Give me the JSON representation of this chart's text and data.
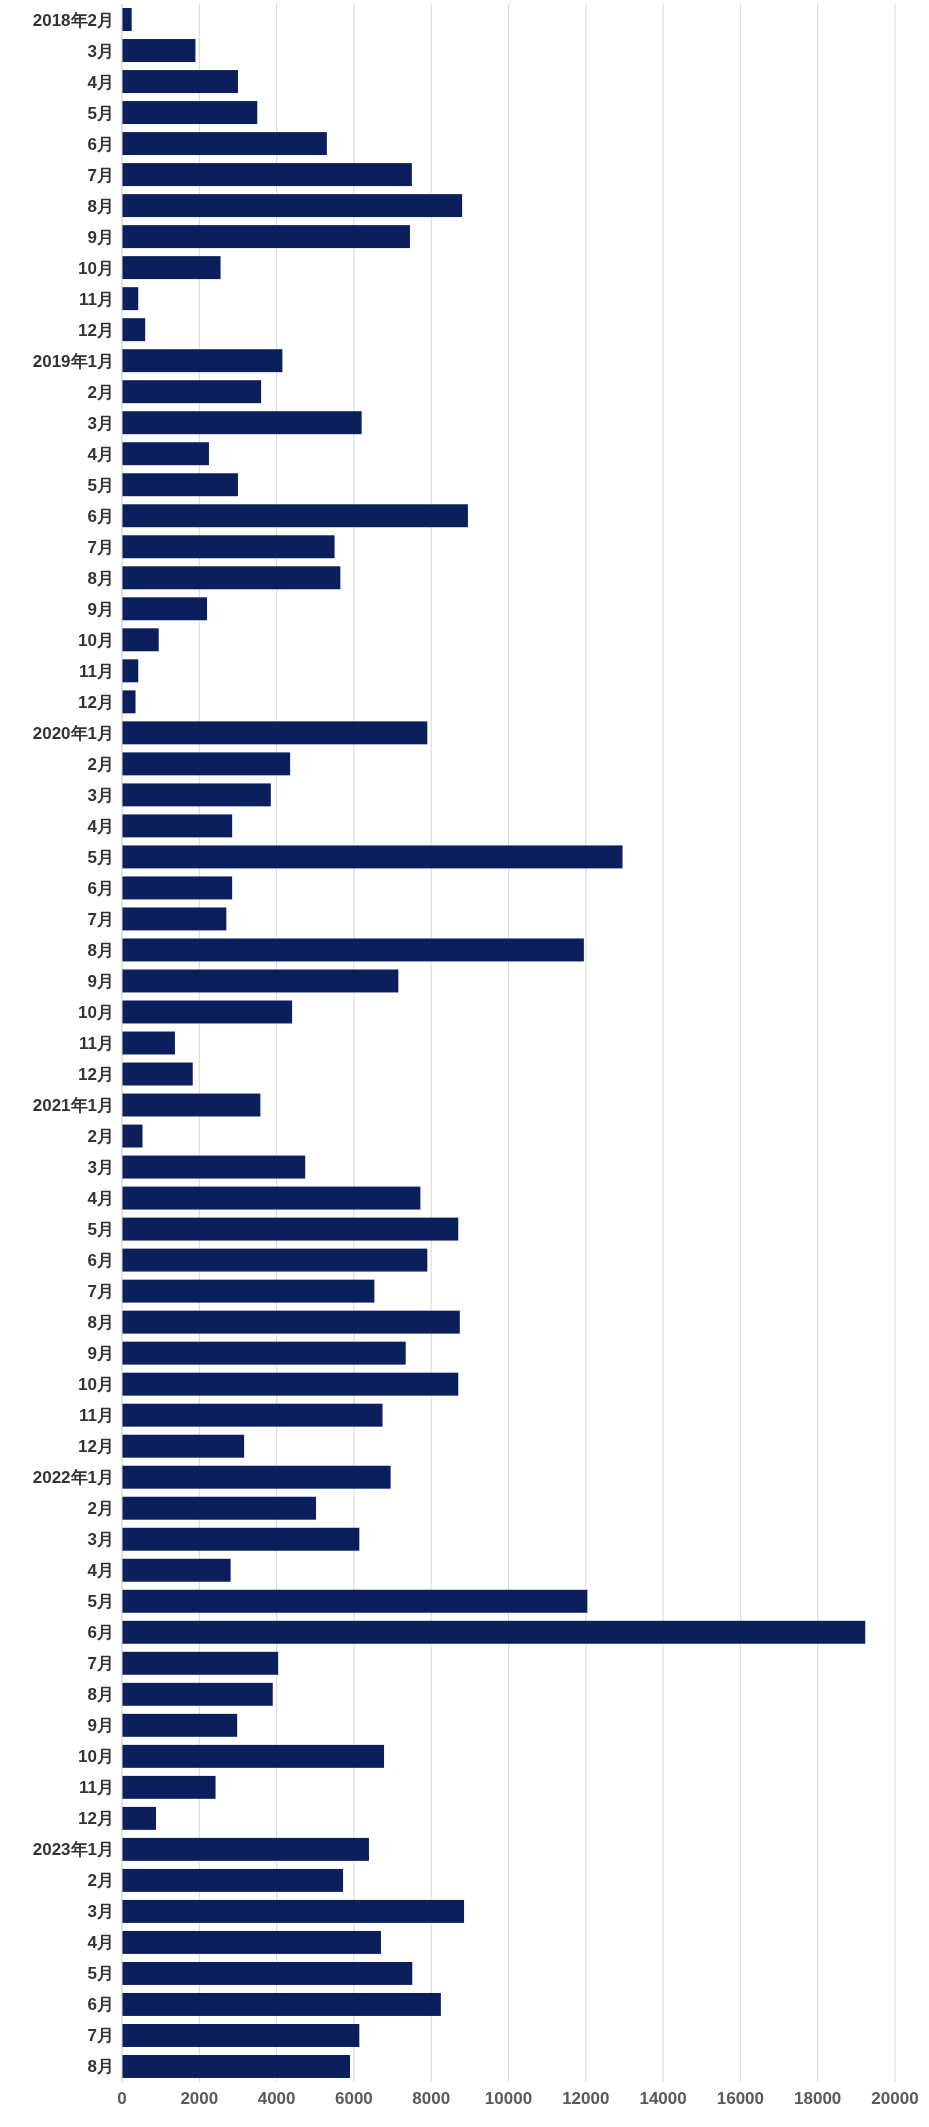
{
  "chart_data": {
    "type": "bar",
    "orientation": "horizontal",
    "categories": [
      "2018年2月",
      "3月",
      "4月",
      "5月",
      "6月",
      "7月",
      "8月",
      "9月",
      "10月",
      "11月",
      "12月",
      "2019年1月",
      "2月",
      "3月",
      "4月",
      "5月",
      "6月",
      "7月",
      "8月",
      "9月",
      "10月",
      "11月",
      "12月",
      "2020年1月",
      "2月",
      "3月",
      "4月",
      "5月",
      "6月",
      "7月",
      "8月",
      "9月",
      "10月",
      "11月",
      "12月",
      "2021年1月",
      "2月",
      "3月",
      "4月",
      "5月",
      "6月",
      "7月",
      "8月",
      "9月",
      "10月",
      "11月",
      "12月",
      "2022年1月",
      "2月",
      "3月",
      "4月",
      "5月",
      "6月",
      "7月",
      "8月",
      "9月",
      "10月",
      "11月",
      "12月",
      "2023年1月",
      "2月",
      "3月",
      "4月",
      "5月",
      "6月",
      "7月",
      "8月"
    ],
    "values": [
      250,
      1900,
      3000,
      3500,
      5300,
      7500,
      8800,
      7450,
      2550,
      420,
      600,
      4150,
      3600,
      6200,
      2250,
      3000,
      8950,
      5500,
      5650,
      2200,
      950,
      420,
      350,
      7900,
      4350,
      3850,
      2850,
      12950,
      2850,
      2700,
      11950,
      7150,
      4400,
      1370,
      1830,
      3580,
      530,
      4740,
      7720,
      8700,
      7900,
      6530,
      8740,
      7340,
      8700,
      6740,
      3160,
      6950,
      5020,
      6140,
      2810,
      12040,
      19230,
      4040,
      3900,
      2980,
      6780,
      2420,
      880,
      6390,
      5720,
      8850,
      6700,
      7510,
      8250,
      6140,
      5900
    ],
    "color": "#0b1f5c",
    "xlim": [
      0,
      20000
    ],
    "xticks": [
      0,
      2000,
      4000,
      6000,
      8000,
      10000,
      12000,
      14000,
      16000,
      18000,
      20000
    ],
    "grid": "x"
  }
}
